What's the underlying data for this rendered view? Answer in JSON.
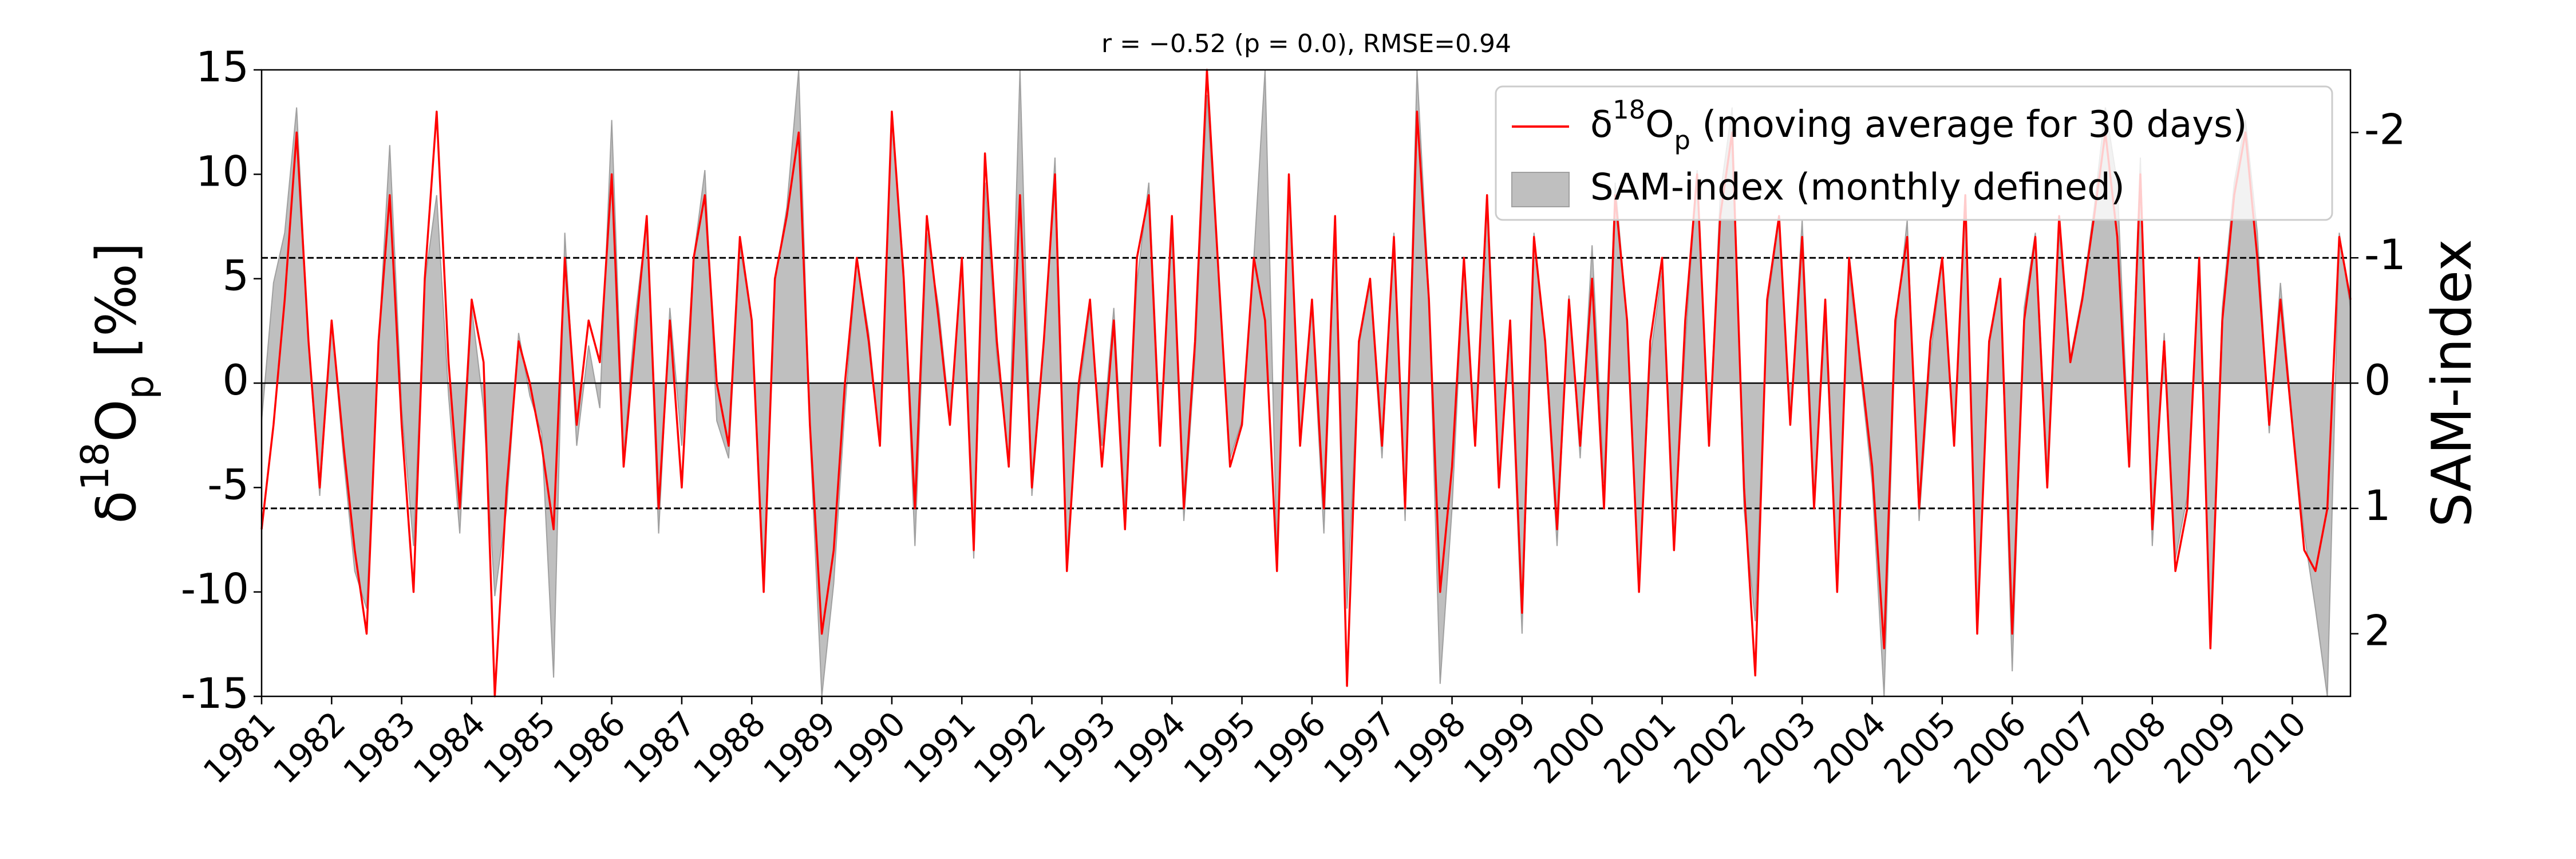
{
  "chart_data": {
    "type": "line",
    "title": "r = −0.52 (p = 0.0), RMSE=0.94",
    "ylabel": [
      "δ",
      "18",
      "O",
      "p",
      " [‰]"
    ],
    "y2label": "SAM-index",
    "xlim": [
      1981,
      2010.83
    ],
    "xticks": [
      1981,
      1982,
      1983,
      1984,
      1985,
      1986,
      1987,
      1988,
      1989,
      1990,
      1991,
      1992,
      1993,
      1994,
      1995,
      1996,
      1997,
      1998,
      1999,
      2000,
      2001,
      2002,
      2003,
      2004,
      2005,
      2006,
      2007,
      2008,
      2009,
      2010
    ],
    "ylim": [
      -15,
      15
    ],
    "yticks": [
      -15,
      -10,
      -5,
      0,
      5,
      10,
      15
    ],
    "y2lim": [
      2.5,
      -2.5
    ],
    "y2ticks": [
      -2,
      -1,
      0,
      1,
      2
    ],
    "grid": false,
    "legend": "upper right",
    "hlines": [
      {
        "value": -1,
        "axis": "y2",
        "style": "dashed"
      },
      {
        "value": 0,
        "axis": "y2",
        "style": "solid"
      },
      {
        "value": 1,
        "axis": "y2",
        "style": "dashed"
      }
    ],
    "x": [
      1981,
      1981.17,
      1981.33,
      1981.5,
      1981.67,
      1981.83,
      1982,
      1982.17,
      1982.33,
      1982.5,
      1982.67,
      1982.83,
      1983,
      1983.17,
      1983.33,
      1983.5,
      1983.67,
      1983.83,
      1984,
      1984.17,
      1984.33,
      1984.5,
      1984.67,
      1984.83,
      1985,
      1985.17,
      1985.33,
      1985.5,
      1985.67,
      1985.83,
      1986,
      1986.17,
      1986.33,
      1986.5,
      1986.67,
      1986.83,
      1987,
      1987.17,
      1987.33,
      1987.5,
      1987.67,
      1987.83,
      1988,
      1988.17,
      1988.33,
      1988.5,
      1988.67,
      1988.83,
      1989,
      1989.17,
      1989.33,
      1989.5,
      1989.67,
      1989.83,
      1990,
      1990.17,
      1990.33,
      1990.5,
      1990.67,
      1990.83,
      1991,
      1991.17,
      1991.33,
      1991.5,
      1991.67,
      1991.83,
      1992,
      1992.17,
      1992.33,
      1992.5,
      1992.67,
      1992.83,
      1993,
      1993.17,
      1993.33,
      1993.5,
      1993.67,
      1993.83,
      1994,
      1994.17,
      1994.33,
      1994.5,
      1994.67,
      1994.83,
      1995,
      1995.17,
      1995.33,
      1995.5,
      1995.67,
      1995.83,
      1996,
      1996.17,
      1996.33,
      1996.5,
      1996.67,
      1996.83,
      1997,
      1997.17,
      1997.33,
      1997.5,
      1997.67,
      1997.83,
      1998,
      1998.17,
      1998.33,
      1998.5,
      1998.67,
      1998.83,
      1999,
      1999.17,
      1999.33,
      1999.5,
      1999.67,
      1999.83,
      2000,
      2000.17,
      2000.33,
      2000.5,
      2000.67,
      2000.83,
      2001,
      2001.17,
      2001.33,
      2001.5,
      2001.67,
      2001.83,
      2002,
      2002.17,
      2002.33,
      2002.5,
      2002.67,
      2002.83,
      2003,
      2003.17,
      2003.33,
      2003.5,
      2003.67,
      2003.83,
      2004,
      2004.17,
      2004.33,
      2004.5,
      2004.67,
      2004.83,
      2005,
      2005.17,
      2005.33,
      2005.5,
      2005.67,
      2005.83,
      2006,
      2006.17,
      2006.33,
      2006.5,
      2006.67,
      2006.83,
      2007,
      2007.17,
      2007.33,
      2007.5,
      2007.67,
      2007.83,
      2008,
      2008.17,
      2008.33,
      2008.5,
      2008.67,
      2008.83,
      2009,
      2009.17,
      2009.33,
      2009.5,
      2009.67,
      2009.83,
      2010,
      2010.17,
      2010.33,
      2010.5,
      2010.67,
      2010.83
    ],
    "series": [
      {
        "name": [
          "δ",
          "18",
          "O",
          "p",
          " (moving average for 30 days)"
        ],
        "style": "line",
        "color": "#ff0000",
        "values": [
          -7,
          -2,
          4,
          12,
          2,
          -5,
          3,
          -3,
          -8,
          -12,
          2,
          9,
          -2,
          -10,
          5,
          13,
          1,
          -6,
          4,
          1,
          -15,
          -5,
          2,
          0,
          -3,
          -7,
          6,
          -2,
          3,
          1,
          10,
          -4,
          2,
          8,
          -6,
          3,
          -5,
          6,
          9,
          0,
          -3,
          7,
          3,
          -10,
          5,
          8,
          12,
          -2,
          -12,
          -8,
          0,
          6,
          2,
          -3,
          13,
          5,
          -6,
          8,
          3,
          -2,
          6,
          -8,
          11,
          2,
          -4,
          9,
          -5,
          2,
          10,
          -9,
          0,
          4,
          -4,
          3,
          -7,
          6,
          9,
          -3,
          8,
          -6,
          2,
          15,
          5,
          -4,
          -2,
          6,
          3,
          -9,
          10,
          -3,
          4,
          -6,
          8,
          -14.5,
          2,
          5,
          -3,
          7,
          -6,
          13,
          4,
          -10,
          -4,
          6,
          -3,
          9,
          -5,
          3,
          -11,
          7,
          2,
          -7,
          4,
          -3,
          5,
          -6,
          9,
          3,
          -10,
          2,
          6,
          -8,
          3,
          10,
          -3,
          8,
          12,
          -5,
          -14,
          4,
          8,
          -2,
          7,
          -6,
          4,
          -10,
          6,
          1,
          -4,
          -12.7,
          3,
          7,
          -6,
          2,
          6,
          -3,
          9,
          -12,
          2,
          5,
          -12,
          3,
          7,
          -5,
          8,
          1,
          4,
          8,
          12,
          7,
          -4,
          10,
          -7,
          2,
          -9,
          -6,
          6,
          -12.7,
          3,
          9,
          12,
          6,
          -2,
          4,
          -2,
          -8,
          -9,
          -6,
          7,
          4
        ]
      },
      {
        "name": "SAM-index (monthly defined)",
        "style": "area",
        "axis": "y2",
        "color": "#bfbfbf",
        "values": [
          0.3,
          -0.8,
          -1.2,
          -2.2,
          -0.3,
          0.9,
          -0.5,
          0.6,
          1.5,
          1.8,
          -0.3,
          -1.9,
          0.2,
          1.3,
          -0.8,
          -1.5,
          0.1,
          1.2,
          -0.6,
          0.2,
          1.7,
          1.0,
          -0.4,
          0.1,
          0.4,
          2.35,
          -1.2,
          0.5,
          -0.3,
          0.2,
          -2.1,
          0.6,
          -0.5,
          -1.3,
          1.2,
          -0.6,
          0.5,
          -1.0,
          -1.7,
          0.3,
          0.6,
          -1.1,
          -0.5,
          1.5,
          -0.8,
          -1.4,
          -2.5,
          0.4,
          2.5,
          1.6,
          0.2,
          -1.0,
          -0.4,
          0.5,
          -2.1,
          -0.9,
          1.3,
          -1.2,
          -0.6,
          0.3,
          -1.0,
          1.4,
          -1.6,
          -0.2,
          0.6,
          -2.5,
          0.9,
          -0.3,
          -1.8,
          1.4,
          0.1,
          -0.6,
          0.5,
          -0.6,
          1.0,
          -0.8,
          -1.6,
          0.4,
          -1.2,
          1.1,
          -0.2,
          -2.3,
          -0.8,
          0.6,
          0.3,
          -1.0,
          -2.5,
          1.4,
          -1.6,
          0.5,
          -0.6,
          1.2,
          -1.3,
          1.8,
          -0.3,
          -0.8,
          0.6,
          -1.2,
          1.1,
          -2.5,
          -0.7,
          2.4,
          1.0,
          -1.0,
          0.5,
          -1.4,
          0.8,
          -0.4,
          2.0,
          -1.2,
          -0.3,
          1.3,
          -0.7,
          0.6,
          -1.1,
          0.8,
          -1.6,
          -0.5,
          1.6,
          -0.2,
          -0.9,
          1.3,
          -0.3,
          -1.7,
          0.5,
          -1.5,
          -2.2,
          1.0,
          1.9,
          -0.6,
          -1.3,
          0.3,
          -1.3,
          0.9,
          -0.5,
          1.6,
          -0.9,
          -0.1,
          0.8,
          2.5,
          -0.4,
          -1.3,
          1.1,
          -0.2,
          -1.0,
          0.5,
          -1.5,
          1.9,
          -0.3,
          -0.8,
          2.3,
          -0.6,
          -1.2,
          0.7,
          -1.2,
          -0.2,
          -0.7,
          -1.4,
          -2.2,
          -1.6,
          0.6,
          -1.8,
          1.3,
          -0.4,
          1.4,
          0.9,
          -1.0,
          2.0,
          -0.6,
          -1.6,
          -2.1,
          -1.2,
          0.4,
          -0.8,
          0.3,
          1.2,
          1.8,
          2.5,
          -1.2,
          -0.6
        ]
      }
    ]
  }
}
